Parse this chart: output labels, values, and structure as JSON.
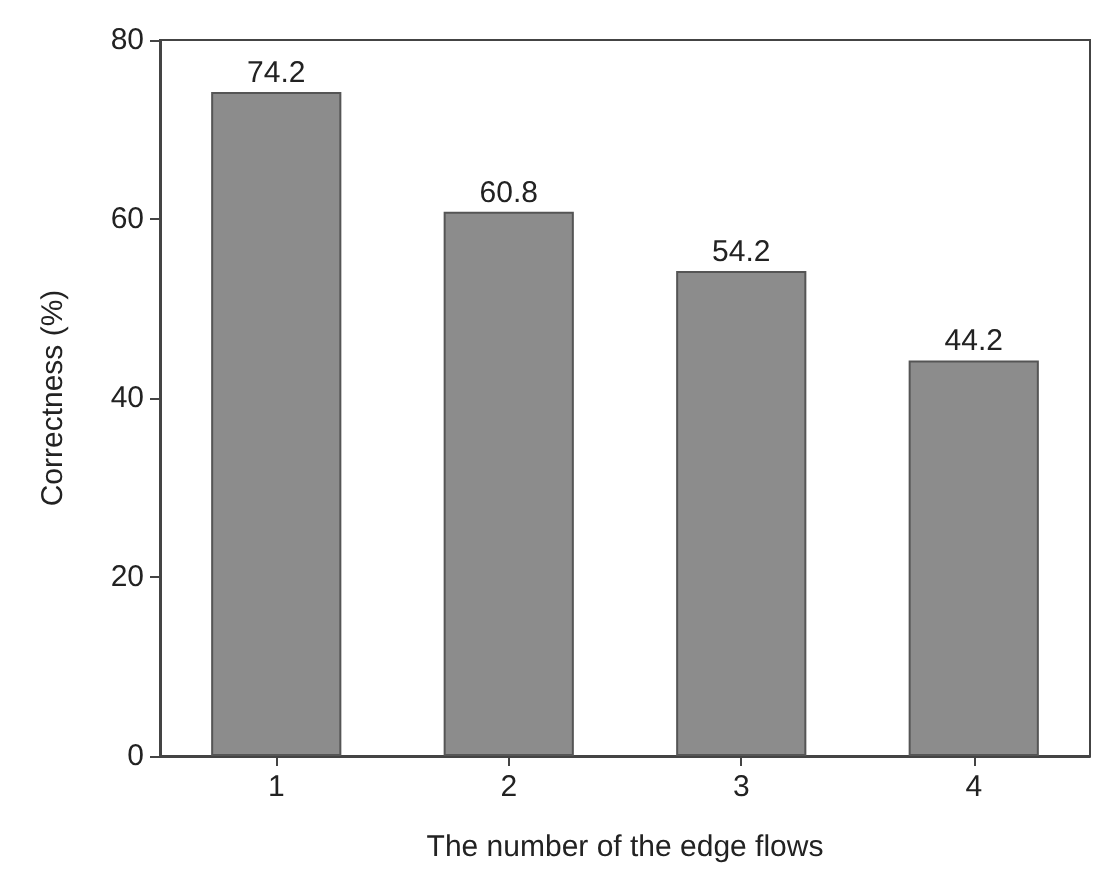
{
  "chart_data": {
    "type": "bar",
    "xlabel": "The number of the edge flows",
    "ylabel": "Correctness (%)",
    "categories": [
      "1",
      "2",
      "3",
      "4"
    ],
    "values": [
      74.2,
      60.8,
      54.2,
      44.2
    ],
    "color": "#8c8c8c",
    "ylim": [
      0,
      80
    ],
    "yticks": [
      0,
      20,
      40,
      60,
      80
    ],
    "data_labels": true,
    "grid": false
  }
}
